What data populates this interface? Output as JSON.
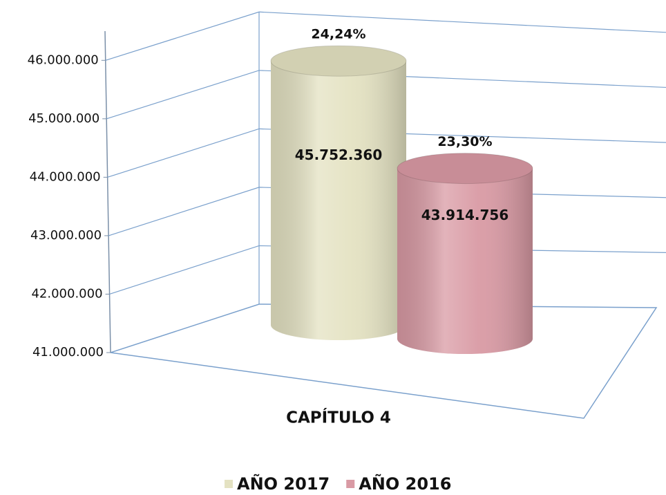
{
  "chart_data": {
    "type": "bar",
    "categories": [
      "CAPÍTULO 4"
    ],
    "series": [
      {
        "name": "AÑO 2017",
        "color": "#e4e2c2",
        "values": [
          45752360
        ],
        "value_labels": [
          "45.752.360"
        ],
        "share_labels": [
          "24,24%"
        ]
      },
      {
        "name": "AÑO 2016",
        "color": "#d99aa4",
        "values": [
          43914756
        ],
        "value_labels": [
          "43.914.756"
        ],
        "share_labels": [
          "23,30%"
        ]
      }
    ],
    "ylim": [
      41000000,
      46500000
    ],
    "yticks": [
      {
        "value": 41000000,
        "label": "41.000.000"
      },
      {
        "value": 42000000,
        "label": "42.000.000"
      },
      {
        "value": 43000000,
        "label": "43.000.000"
      },
      {
        "value": 44000000,
        "label": "44.000.000"
      },
      {
        "value": 45000000,
        "label": "45.000.000"
      },
      {
        "value": 46000000,
        "label": "46.000.000"
      }
    ],
    "grid": true,
    "legend": "bottom"
  }
}
